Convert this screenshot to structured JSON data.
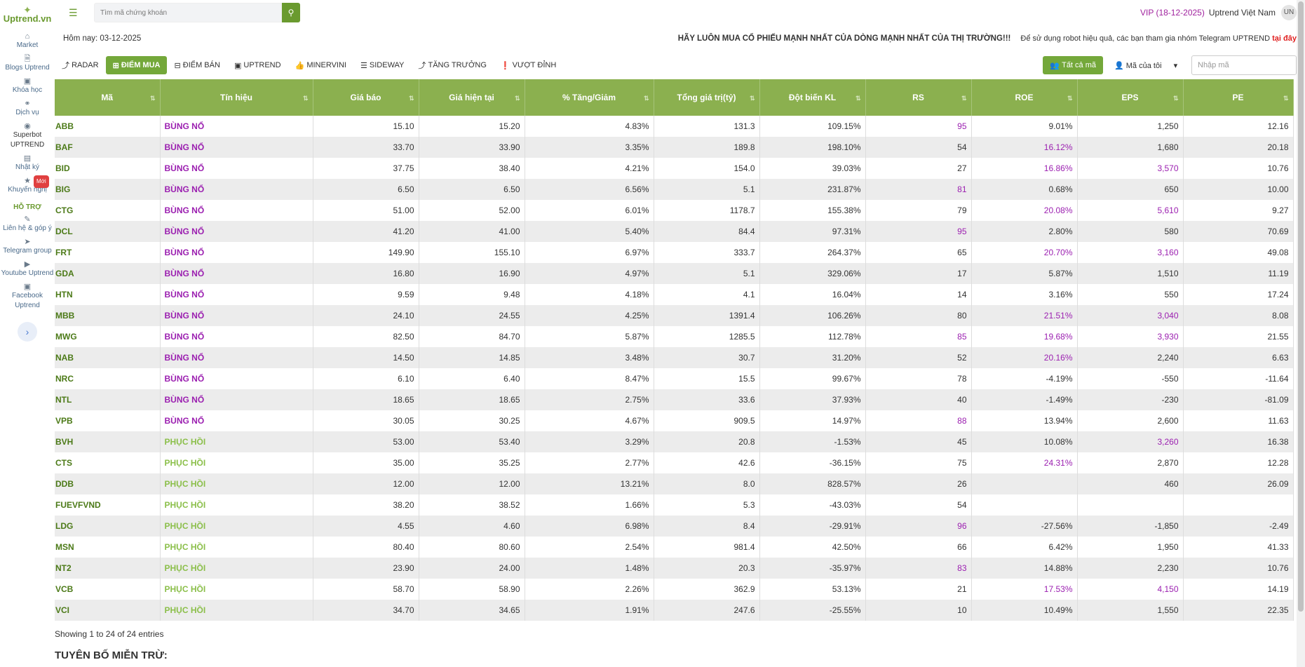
{
  "app": {
    "logo": "Uptrend.vn",
    "search_placeholder": "Tìm mã chứng khoán",
    "vip": "VIP (18-12-2025)",
    "user": "Uptrend Việt Nam",
    "avatar": "UN"
  },
  "sidebar": {
    "items": [
      {
        "label": "Market",
        "icon": "home-icon"
      },
      {
        "label": "Blogs Uptrend",
        "icon": "file-icon"
      },
      {
        "label": "Khóa học",
        "icon": "laptop-icon"
      },
      {
        "label": "Dịch vụ",
        "icon": "handshake-icon"
      },
      {
        "label": "Superbot UPTREND",
        "icon": "robot-icon"
      },
      {
        "label": "Nhật ký",
        "icon": "book-icon"
      },
      {
        "label": "Khuyến nghị",
        "icon": "star-icon",
        "badge": "Mới"
      }
    ],
    "support_title": "HỖ TRỢ",
    "support": [
      {
        "label": "Liên hệ & góp ý",
        "icon": "edit-icon"
      },
      {
        "label": "Telegram group",
        "icon": "telegram-icon"
      },
      {
        "label": "Youtube Uptrend",
        "icon": "youtube-icon"
      },
      {
        "label": "Facebook Uptrend",
        "icon": "facebook-icon"
      }
    ]
  },
  "subbar": {
    "today": "Hôm nay: 03-12-2025",
    "slogan": "HÃY LUÔN MUA CỔ PHIẾU MẠNH NHẤT CỦA DÒNG MẠNH NHẤT CỦA THỊ TRƯỜNG!!!",
    "note": "Để sử dụng robot hiệu quả, các bạn tham gia nhóm Telegram UPTREND",
    "note_link": "tại đây"
  },
  "tabs": [
    "RADAR",
    "ĐIỂM MUA",
    "ĐIỂM BÁN",
    "UPTREND",
    "MINERVINI",
    "SIDEWAY",
    "TĂNG TRƯỞNG",
    "VƯỢT ĐỈNH"
  ],
  "controls": {
    "all_label": "Tất cả mã",
    "mine_label": "Mã của tôi",
    "code_placeholder": "Nhập mã"
  },
  "table": {
    "headers": [
      "Mã",
      "Tín hiệu",
      "Giá báo",
      "Giá hiện tại",
      "% Tăng/Giảm",
      "Tổng giá trị(tỷ)",
      "Đột biến KL",
      "RS",
      "ROE",
      "EPS",
      "PE"
    ],
    "rows": [
      [
        "ABB",
        "BÙNG NỔ",
        "15.10",
        "15.20",
        "4.83%",
        "131.3",
        "109.15%",
        "95",
        "9.01%",
        "1,250",
        "12.16"
      ],
      [
        "BAF",
        "BÙNG NỔ",
        "33.70",
        "33.90",
        "3.35%",
        "189.8",
        "198.10%",
        "54",
        "16.12%",
        "1,680",
        "20.18"
      ],
      [
        "BID",
        "BÙNG NỔ",
        "37.75",
        "38.40",
        "4.21%",
        "154.0",
        "39.03%",
        "27",
        "16.86%",
        "3,570",
        "10.76"
      ],
      [
        "BIG",
        "BÙNG NỔ",
        "6.50",
        "6.50",
        "6.56%",
        "5.1",
        "231.87%",
        "81",
        "0.68%",
        "650",
        "10.00"
      ],
      [
        "CTG",
        "BÙNG NỔ",
        "51.00",
        "52.00",
        "6.01%",
        "1178.7",
        "155.38%",
        "79",
        "20.08%",
        "5,610",
        "9.27"
      ],
      [
        "DCL",
        "BÙNG NỔ",
        "41.20",
        "41.00",
        "5.40%",
        "84.4",
        "97.31%",
        "95",
        "2.80%",
        "580",
        "70.69"
      ],
      [
        "FRT",
        "BÙNG NỔ",
        "149.90",
        "155.10",
        "6.97%",
        "333.7",
        "264.37%",
        "65",
        "20.70%",
        "3,160",
        "49.08"
      ],
      [
        "GDA",
        "BÙNG NỔ",
        "16.80",
        "16.90",
        "4.97%",
        "5.1",
        "329.06%",
        "17",
        "5.87%",
        "1,510",
        "11.19"
      ],
      [
        "HTN",
        "BÙNG NỔ",
        "9.59",
        "9.48",
        "4.18%",
        "4.1",
        "16.04%",
        "14",
        "3.16%",
        "550",
        "17.24"
      ],
      [
        "MBB",
        "BÙNG NỔ",
        "24.10",
        "24.55",
        "4.25%",
        "1391.4",
        "106.26%",
        "80",
        "21.51%",
        "3,040",
        "8.08"
      ],
      [
        "MWG",
        "BÙNG NỔ",
        "82.50",
        "84.70",
        "5.87%",
        "1285.5",
        "112.78%",
        "85",
        "19.68%",
        "3,930",
        "21.55"
      ],
      [
        "NAB",
        "BÙNG NỔ",
        "14.50",
        "14.85",
        "3.48%",
        "30.7",
        "31.20%",
        "52",
        "20.16%",
        "2,240",
        "6.63"
      ],
      [
        "NRC",
        "BÙNG NỔ",
        "6.10",
        "6.40",
        "8.47%",
        "15.5",
        "99.67%",
        "78",
        "-4.19%",
        "-550",
        "-11.64"
      ],
      [
        "NTL",
        "BÙNG NỔ",
        "18.65",
        "18.65",
        "2.75%",
        "33.6",
        "37.93%",
        "40",
        "-1.49%",
        "-230",
        "-81.09"
      ],
      [
        "VPB",
        "BÙNG NỔ",
        "30.05",
        "30.25",
        "4.67%",
        "909.5",
        "14.97%",
        "88",
        "13.94%",
        "2,600",
        "11.63"
      ],
      [
        "BVH",
        "PHỤC HỒI",
        "53.00",
        "53.40",
        "3.29%",
        "20.8",
        "-1.53%",
        "45",
        "10.08%",
        "3,260",
        "16.38"
      ],
      [
        "CTS",
        "PHỤC HỒI",
        "35.00",
        "35.25",
        "2.77%",
        "42.6",
        "-36.15%",
        "75",
        "24.31%",
        "2,870",
        "12.28"
      ],
      [
        "DDB",
        "PHỤC HỒI",
        "12.00",
        "12.00",
        "13.21%",
        "8.0",
        "828.57%",
        "26",
        "",
        "460",
        "26.09"
      ],
      [
        "FUEVFVND",
        "PHỤC HỒI",
        "38.20",
        "38.52",
        "1.66%",
        "5.3",
        "-43.03%",
        "54",
        "",
        "",
        ""
      ],
      [
        "LDG",
        "PHỤC HỒI",
        "4.55",
        "4.60",
        "6.98%",
        "8.4",
        "-29.91%",
        "96",
        "-27.56%",
        "-1,850",
        "-2.49"
      ],
      [
        "MSN",
        "PHỤC HỒI",
        "80.40",
        "80.60",
        "2.54%",
        "981.4",
        "42.50%",
        "66",
        "6.42%",
        "1,950",
        "41.33"
      ],
      [
        "NT2",
        "PHỤC HỒI",
        "23.90",
        "24.00",
        "1.48%",
        "20.3",
        "-35.97%",
        "83",
        "14.88%",
        "2,230",
        "10.76"
      ],
      [
        "VCB",
        "PHỤC HỒI",
        "58.70",
        "58.90",
        "2.26%",
        "362.9",
        "53.13%",
        "21",
        "17.53%",
        "4,150",
        "14.19"
      ],
      [
        "VCI",
        "PHỤC HỒI",
        "34.70",
        "34.65",
        "1.91%",
        "247.6",
        "-25.55%",
        "10",
        "10.49%",
        "1,550",
        "22.35"
      ]
    ]
  },
  "footer": {
    "showing": "Showing 1 to 24 of 24 entries",
    "disclaimer": "TUYÊN BỐ MIỄN TRỪ:"
  },
  "colors": {
    "accent": "#8bb04f",
    "purple": "#9b1fb0",
    "signal_recovery": "#8bbf4a"
  }
}
